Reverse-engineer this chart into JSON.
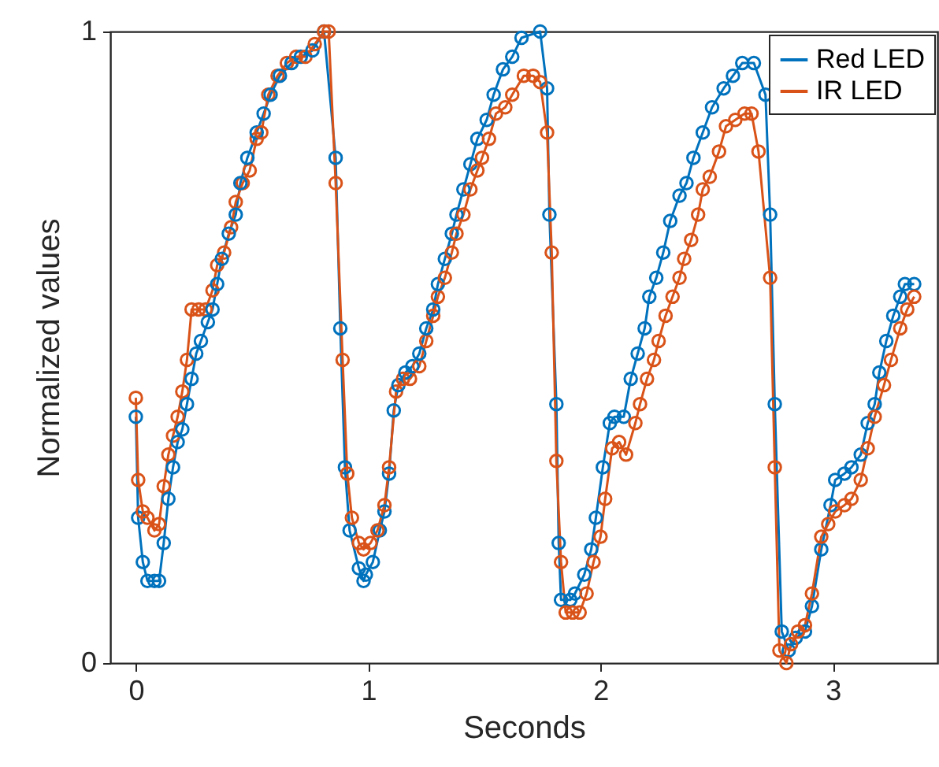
{
  "chart_data": {
    "type": "line",
    "xlabel": "Seconds",
    "ylabel": "Normalized values",
    "xlim": [
      -0.11,
      3.45
    ],
    "xticks": [
      0,
      1,
      2,
      3
    ],
    "ylim": [
      0,
      1
    ],
    "yticks": [
      0,
      1
    ],
    "grid": false,
    "legend": "top right",
    "marker": "circle",
    "line_style": "solid",
    "series": [
      {
        "name": "Red LED",
        "color": "#0072bd",
        "x": [
          0.0,
          0.01,
          0.03,
          0.05,
          0.08,
          0.1,
          0.12,
          0.14,
          0.16,
          0.18,
          0.2,
          0.22,
          0.24,
          0.26,
          0.28,
          0.31,
          0.33,
          0.35,
          0.37,
          0.4,
          0.43,
          0.45,
          0.48,
          0.52,
          0.55,
          0.58,
          0.62,
          0.67,
          0.71,
          0.76,
          0.81,
          0.86,
          0.88,
          0.9,
          0.92,
          0.96,
          0.98,
          0.99,
          1.02,
          1.05,
          1.07,
          1.09,
          1.11,
          1.13,
          1.16,
          1.19,
          1.22,
          1.25,
          1.28,
          1.3,
          1.33,
          1.36,
          1.38,
          1.41,
          1.44,
          1.47,
          1.51,
          1.54,
          1.58,
          1.62,
          1.66,
          1.74,
          1.77,
          1.78,
          1.81,
          1.82,
          1.83,
          1.87,
          1.89,
          1.93,
          1.96,
          1.98,
          2.01,
          2.04,
          2.06,
          2.1,
          2.13,
          2.16,
          2.19,
          2.21,
          2.24,
          2.27,
          2.3,
          2.34,
          2.37,
          2.4,
          2.44,
          2.48,
          2.53,
          2.57,
          2.61,
          2.66,
          2.71,
          2.73,
          2.75,
          2.78,
          2.81,
          2.84,
          2.88,
          2.91,
          2.95,
          2.99,
          3.01,
          3.05,
          3.08,
          3.12,
          3.15,
          3.18,
          3.2,
          3.23,
          3.26,
          3.29,
          3.31,
          3.35
        ],
        "values": [
          0.39,
          0.23,
          0.16,
          0.13,
          0.13,
          0.13,
          0.19,
          0.26,
          0.31,
          0.35,
          0.37,
          0.41,
          0.45,
          0.49,
          0.51,
          0.54,
          0.56,
          0.6,
          0.64,
          0.68,
          0.71,
          0.76,
          0.8,
          0.84,
          0.87,
          0.9,
          0.93,
          0.95,
          0.96,
          0.97,
          1.0,
          0.8,
          0.53,
          0.31,
          0.21,
          0.15,
          0.13,
          0.14,
          0.16,
          0.21,
          0.24,
          0.3,
          0.4,
          0.44,
          0.46,
          0.47,
          0.49,
          0.53,
          0.56,
          0.6,
          0.64,
          0.68,
          0.71,
          0.75,
          0.79,
          0.83,
          0.86,
          0.9,
          0.94,
          0.96,
          0.99,
          1.0,
          0.91,
          0.71,
          0.41,
          0.19,
          0.1,
          0.1,
          0.11,
          0.14,
          0.18,
          0.23,
          0.31,
          0.38,
          0.39,
          0.39,
          0.45,
          0.49,
          0.53,
          0.58,
          0.61,
          0.65,
          0.7,
          0.74,
          0.76,
          0.8,
          0.84,
          0.88,
          0.91,
          0.93,
          0.95,
          0.95,
          0.9,
          0.71,
          0.41,
          0.05,
          0.02,
          0.04,
          0.05,
          0.09,
          0.18,
          0.25,
          0.29,
          0.3,
          0.31,
          0.33,
          0.38,
          0.41,
          0.46,
          0.51,
          0.55,
          0.58,
          0.6,
          0.6
        ]
      },
      {
        "name": "IR LED",
        "color": "#d95319",
        "x": [
          0.0,
          0.01,
          0.03,
          0.05,
          0.08,
          0.1,
          0.12,
          0.14,
          0.16,
          0.18,
          0.2,
          0.22,
          0.24,
          0.27,
          0.3,
          0.33,
          0.35,
          0.38,
          0.41,
          0.43,
          0.46,
          0.49,
          0.52,
          0.54,
          0.57,
          0.61,
          0.65,
          0.69,
          0.73,
          0.77,
          0.81,
          0.83,
          0.86,
          0.89,
          0.91,
          0.93,
          0.96,
          0.98,
          1.01,
          1.04,
          1.07,
          1.09,
          1.12,
          1.15,
          1.18,
          1.22,
          1.25,
          1.28,
          1.3,
          1.33,
          1.36,
          1.38,
          1.41,
          1.44,
          1.47,
          1.49,
          1.52,
          1.55,
          1.59,
          1.62,
          1.67,
          1.71,
          1.74,
          1.77,
          1.79,
          1.81,
          1.83,
          1.85,
          1.88,
          1.91,
          1.94,
          1.97,
          2.0,
          2.02,
          2.05,
          2.08,
          2.11,
          2.15,
          2.17,
          2.2,
          2.23,
          2.25,
          2.28,
          2.31,
          2.34,
          2.36,
          2.39,
          2.42,
          2.44,
          2.47,
          2.51,
          2.54,
          2.58,
          2.62,
          2.65,
          2.68,
          2.73,
          2.75,
          2.77,
          2.8,
          2.82,
          2.85,
          2.88,
          2.91,
          2.95,
          2.98,
          3.01,
          3.05,
          3.08,
          3.12,
          3.15,
          3.18,
          3.22,
          3.25,
          3.29,
          3.32,
          3.35
        ],
        "values": [
          0.42,
          0.29,
          0.24,
          0.23,
          0.21,
          0.22,
          0.28,
          0.33,
          0.36,
          0.39,
          0.43,
          0.48,
          0.56,
          0.56,
          0.56,
          0.59,
          0.63,
          0.65,
          0.69,
          0.73,
          0.76,
          0.78,
          0.83,
          0.84,
          0.9,
          0.93,
          0.95,
          0.96,
          0.96,
          0.98,
          1.0,
          1.0,
          0.76,
          0.48,
          0.3,
          0.23,
          0.19,
          0.18,
          0.19,
          0.21,
          0.25,
          0.31,
          0.43,
          0.45,
          0.45,
          0.47,
          0.51,
          0.55,
          0.58,
          0.61,
          0.65,
          0.68,
          0.71,
          0.75,
          0.78,
          0.8,
          0.83,
          0.87,
          0.88,
          0.9,
          0.93,
          0.93,
          0.92,
          0.84,
          0.65,
          0.32,
          0.16,
          0.08,
          0.08,
          0.08,
          0.11,
          0.16,
          0.2,
          0.26,
          0.34,
          0.35,
          0.33,
          0.38,
          0.41,
          0.45,
          0.48,
          0.51,
          0.55,
          0.58,
          0.61,
          0.64,
          0.67,
          0.71,
          0.75,
          0.77,
          0.81,
          0.85,
          0.86,
          0.87,
          0.87,
          0.81,
          0.61,
          0.31,
          0.02,
          0.0,
          0.03,
          0.05,
          0.06,
          0.11,
          0.2,
          0.22,
          0.24,
          0.25,
          0.26,
          0.29,
          0.34,
          0.39,
          0.44,
          0.48,
          0.53,
          0.56,
          0.58
        ]
      }
    ]
  }
}
